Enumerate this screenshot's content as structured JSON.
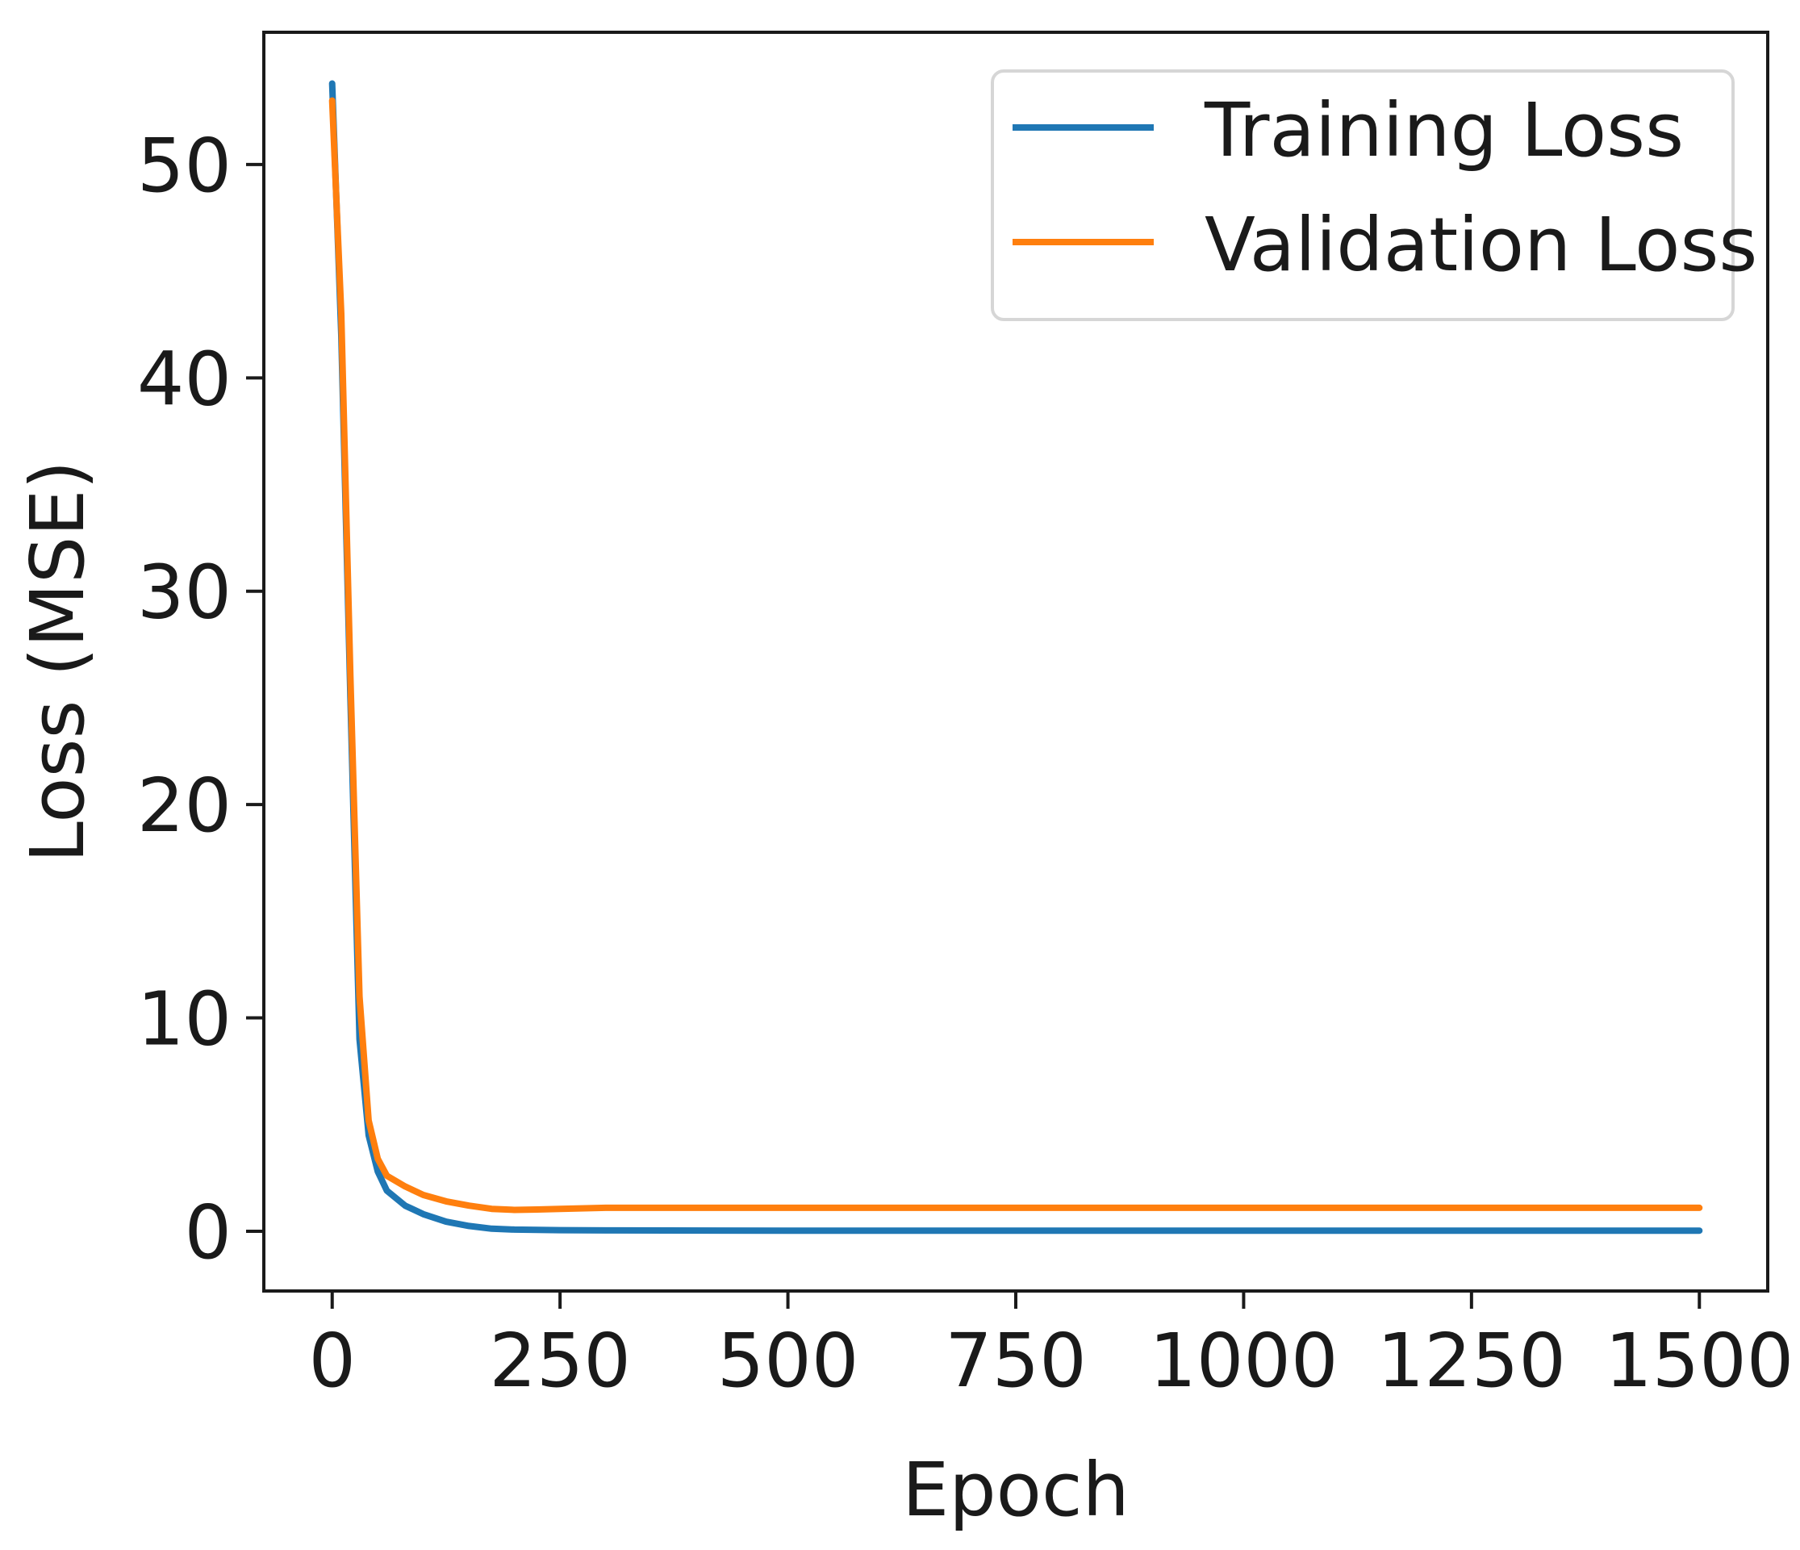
{
  "chart_data": {
    "type": "line",
    "title": "",
    "xlabel": "Epoch",
    "ylabel": "Loss (MSE)",
    "xlim": [
      -75,
      1575
    ],
    "ylim": [
      -2.8,
      56.2
    ],
    "xticks": [
      0,
      250,
      500,
      750,
      1000,
      1250,
      1500
    ],
    "yticks": [
      0,
      10,
      20,
      30,
      40,
      50
    ],
    "grid": false,
    "legend_position": "top-right",
    "series": [
      {
        "name": "Training Loss",
        "color": "#1f77b4",
        "x": [
          0,
          10,
          20,
          30,
          40,
          50,
          60,
          80,
          100,
          125,
          150,
          175,
          200,
          250,
          300,
          500,
          750,
          1000,
          1250,
          1500
        ],
        "y": [
          53.8,
          42.0,
          25.0,
          9.0,
          4.5,
          2.8,
          1.9,
          1.2,
          0.8,
          0.45,
          0.25,
          0.12,
          0.08,
          0.05,
          0.04,
          0.03,
          0.03,
          0.03,
          0.03,
          0.03
        ]
      },
      {
        "name": "Validation Loss",
        "color": "#ff7f0e",
        "x": [
          0,
          10,
          20,
          30,
          40,
          50,
          60,
          80,
          100,
          125,
          150,
          175,
          200,
          225,
          250,
          300,
          500,
          750,
          1000,
          1250,
          1500
        ],
        "y": [
          53.0,
          43.0,
          26.0,
          11.0,
          5.2,
          3.4,
          2.6,
          2.1,
          1.7,
          1.4,
          1.2,
          1.05,
          1.0,
          1.02,
          1.05,
          1.1,
          1.1,
          1.1,
          1.1,
          1.1,
          1.1
        ]
      }
    ]
  }
}
